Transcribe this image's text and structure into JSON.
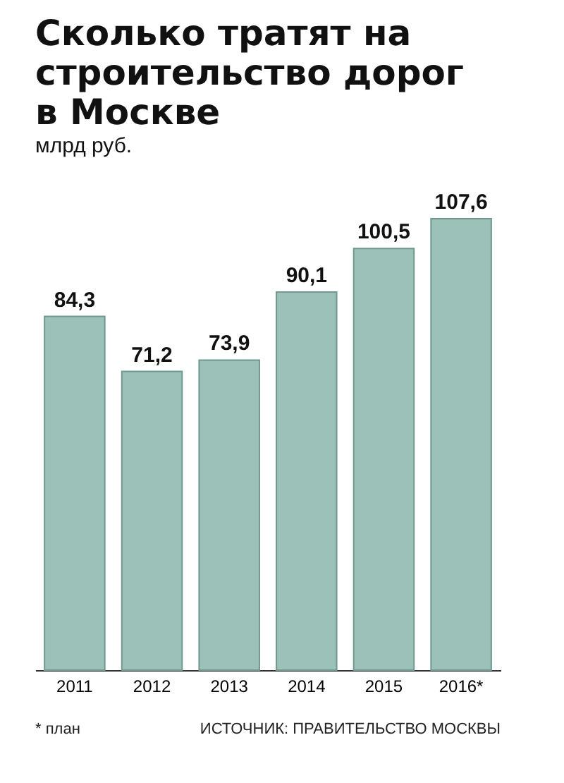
{
  "chart_data": {
    "type": "bar",
    "title": "Сколько тратят на строительство дорог в Москве",
    "subtitle": "млрд руб.",
    "categories": [
      "2011",
      "2012",
      "2013",
      "2014",
      "2015",
      "2016*"
    ],
    "values": [
      84.3,
      71.2,
      73.9,
      90.1,
      100.5,
      107.6
    ],
    "color": "#9bc1b8",
    "value_labels": [
      "84,3",
      "71,2",
      "73,9",
      "90,1",
      "100,5",
      "107,6"
    ],
    "annotations": [
      "* план",
      "ИСТОЧНИК: ПРАВИТЕЛЬСТВО МОСКВЫ"
    ]
  }
}
